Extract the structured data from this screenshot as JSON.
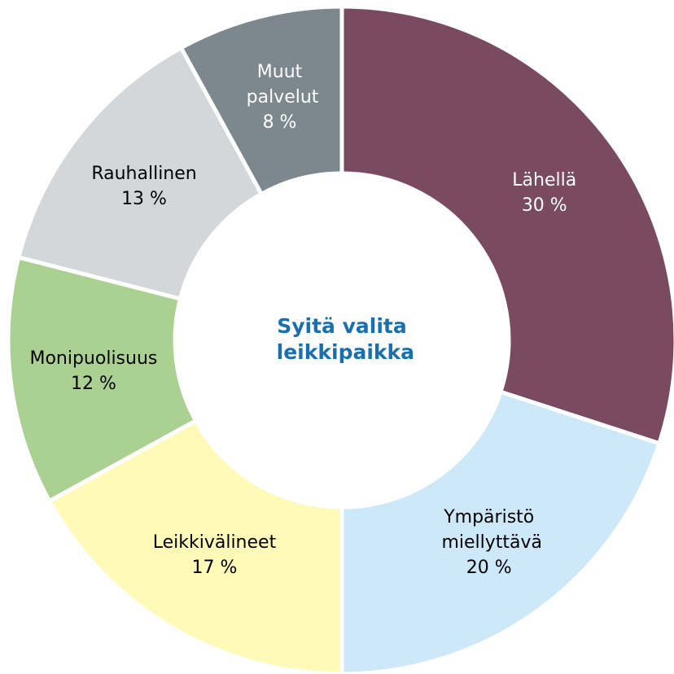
{
  "chart_data": {
    "type": "donut",
    "title": "Syitä valita leikkipaikka",
    "categories": [
      "Lähellä",
      "Ympäristö miellyttävä",
      "Leikkivälineet",
      "Monipuolisuus",
      "Rauhallinen",
      "Muut palvelut"
    ],
    "values": [
      30,
      20,
      17,
      12,
      13,
      8
    ],
    "value_labels": [
      "30 %",
      "20 %",
      "17 %",
      "12 %",
      "13 %",
      "8 %"
    ],
    "colors": [
      "#7a4a61",
      "#cde9f9",
      "#fffab8",
      "#abd192",
      "#d4d7d9",
      "#7c888e"
    ]
  }
}
